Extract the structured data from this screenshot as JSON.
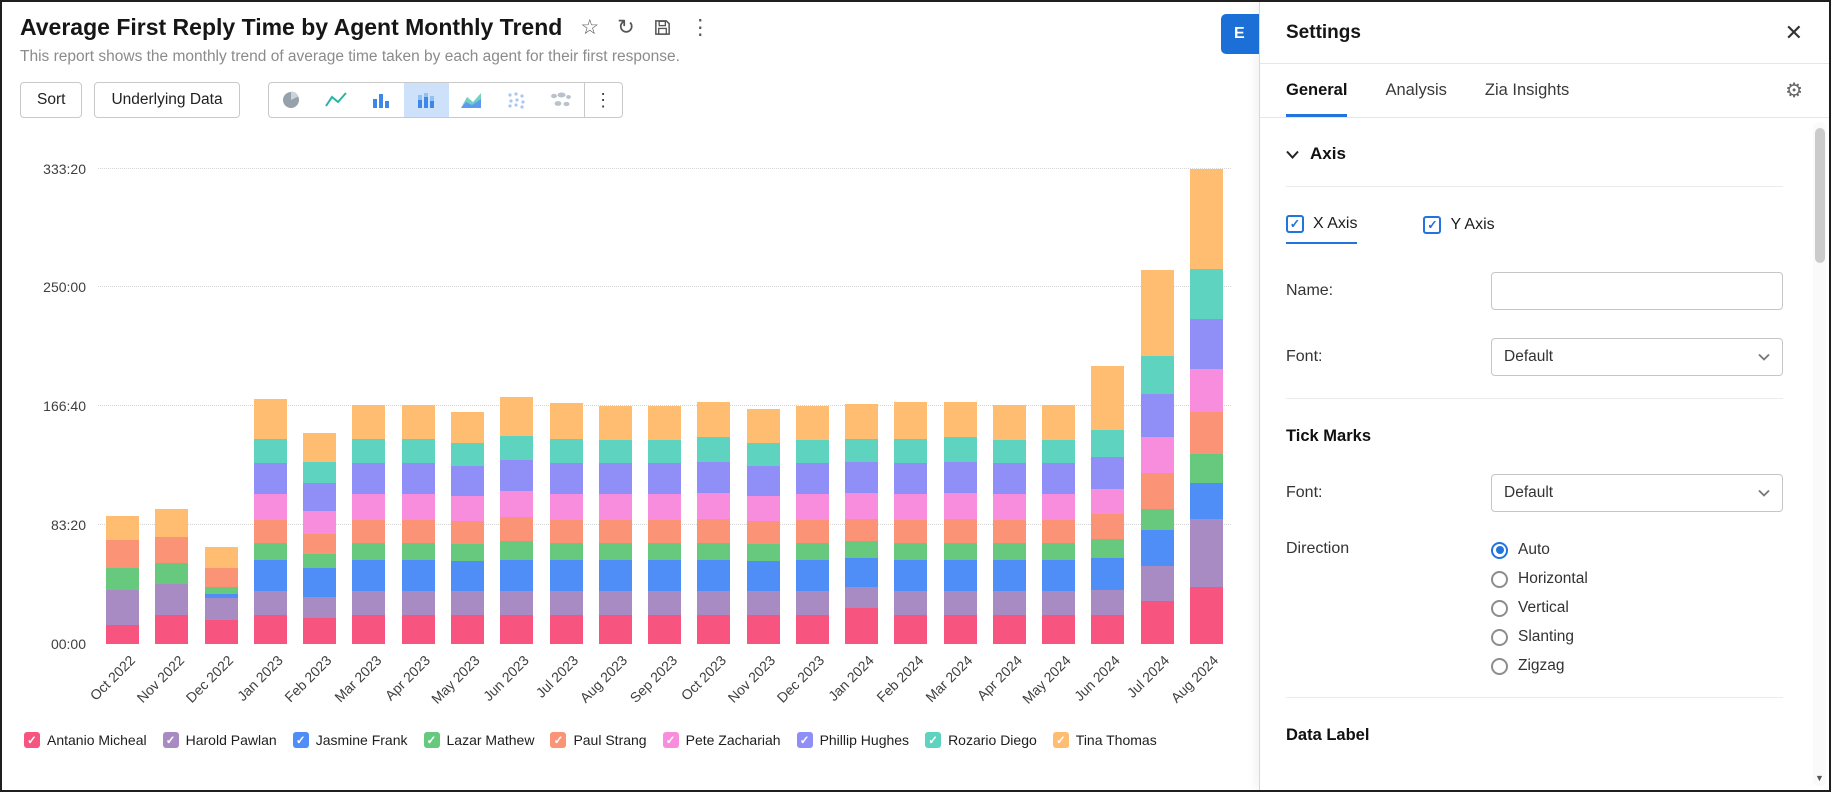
{
  "report": {
    "title": "Average First Reply Time by Agent Monthly Trend",
    "subtitle": "This report shows the monthly trend of average time taken by each agent for their first response.",
    "action_icons": [
      "favorite",
      "refresh",
      "save",
      "more-options"
    ]
  },
  "toolbar": {
    "sort_label": "Sort",
    "underlying_data_label": "Underlying Data",
    "chart_types": [
      "pie-chart",
      "line-chart",
      "bar-chart",
      "stacked-bar-chart",
      "area-chart",
      "scatter-plot",
      "map-chart"
    ],
    "active_chart_type": "stacked-bar-chart"
  },
  "export_button": {
    "visible_label": "E"
  },
  "icons": {
    "favorite": "☆",
    "refresh": "↻",
    "more": "⋮",
    "close": "✕",
    "gear": "⚙",
    "check": "✓",
    "scroll_down": "▼"
  },
  "chart_data": {
    "type": "bar",
    "stacked": true,
    "title": "Average First Reply Time by Agent Monthly Trend",
    "xlabel": "",
    "ylabel": "",
    "grid": "dotted-horizontal",
    "legend_position": "bottom",
    "value_unit": "time (mm:ss axis labels), values in minutes",
    "ylim": [
      0,
      345
    ],
    "yticks": [
      {
        "value": 0,
        "label": "00:00"
      },
      {
        "value": 83.33,
        "label": "83:20"
      },
      {
        "value": 166.67,
        "label": "166:40"
      },
      {
        "value": 250,
        "label": "250:00"
      },
      {
        "value": 333.33,
        "label": "333:20"
      }
    ],
    "categories": [
      "Oct 2022",
      "Nov 2022",
      "Dec 2022",
      "Jan 2023",
      "Feb 2023",
      "Mar 2023",
      "Apr 2023",
      "May 2023",
      "Jun 2023",
      "Jul 2023",
      "Aug 2023",
      "Sep 2023",
      "Oct 2023",
      "Nov 2023",
      "Dec 2023",
      "Jan 2024",
      "Feb 2024",
      "Mar 2024",
      "Apr 2024",
      "May 2024",
      "Jun 2024",
      "Jul 2024",
      "Aug 2024"
    ],
    "series": [
      {
        "name": "Antanio Micheal",
        "color": "#f7557f",
        "values": [
          13,
          20,
          17,
          20,
          18,
          20,
          20,
          20,
          20,
          20,
          20,
          20,
          20,
          20,
          20,
          25,
          20,
          20,
          20,
          20,
          20,
          30,
          40
        ]
      },
      {
        "name": "Harold Pawlan",
        "color": "#a88bc2",
        "values": [
          25,
          22,
          15,
          17,
          15,
          17,
          17,
          17,
          17,
          17,
          17,
          17,
          17,
          17,
          17,
          15,
          17,
          17,
          17,
          17,
          18,
          25,
          48
        ]
      },
      {
        "name": "Jasmine Frank",
        "color": "#4f8df7",
        "values": [
          0,
          0,
          3,
          22,
          20,
          22,
          22,
          21,
          22,
          22,
          22,
          22,
          22,
          21,
          22,
          20,
          22,
          22,
          22,
          22,
          22,
          25,
          25
        ]
      },
      {
        "name": "Lazar Mathew",
        "color": "#66c97e",
        "values": [
          15,
          15,
          5,
          12,
          10,
          12,
          12,
          12,
          13,
          12,
          12,
          12,
          12,
          12,
          12,
          12,
          12,
          12,
          12,
          12,
          14,
          15,
          20
        ]
      },
      {
        "name": "Paul Strang",
        "color": "#fb9376",
        "values": [
          20,
          18,
          13,
          16,
          14,
          16,
          16,
          16,
          17,
          16,
          16,
          16,
          17,
          16,
          16,
          16,
          16,
          17,
          16,
          16,
          17,
          25,
          30
        ]
      },
      {
        "name": "Pete Zachariah",
        "color": "#f98ddd",
        "values": [
          0,
          0,
          0,
          18,
          16,
          18,
          18,
          18,
          18,
          18,
          18,
          18,
          18,
          18,
          18,
          18,
          18,
          18,
          18,
          18,
          18,
          25,
          30
        ]
      },
      {
        "name": "Phillip Hughes",
        "color": "#908ef7",
        "values": [
          0,
          0,
          0,
          22,
          20,
          22,
          22,
          21,
          22,
          22,
          22,
          22,
          22,
          21,
          22,
          22,
          22,
          22,
          22,
          22,
          22,
          30,
          35
        ]
      },
      {
        "name": "Rozario Diego",
        "color": "#5ed3bf",
        "values": [
          0,
          0,
          0,
          17,
          15,
          17,
          17,
          16,
          17,
          17,
          16,
          16,
          17,
          16,
          16,
          16,
          17,
          17,
          16,
          16,
          19,
          27,
          35
        ]
      },
      {
        "name": "Tina Thomas",
        "color": "#ffbd72",
        "values": [
          17,
          20,
          15,
          28,
          20,
          24,
          24,
          22,
          27,
          25,
          24,
          24,
          25,
          24,
          24,
          24,
          26,
          25,
          25,
          25,
          45,
          60,
          70
        ]
      }
    ]
  },
  "settings_panel": {
    "title": "Settings",
    "tabs": [
      {
        "label": "General",
        "active": true
      },
      {
        "label": "Analysis",
        "active": false
      },
      {
        "label": "Zia Insights",
        "active": false
      }
    ],
    "sections": {
      "axis": {
        "title": "Axis",
        "x_axis": {
          "label": "X Axis",
          "checked": true,
          "active": true
        },
        "y_axis": {
          "label": "Y Axis",
          "checked": true,
          "active": false
        },
        "name_label": "Name:",
        "name_value": "",
        "font_label": "Font:",
        "font_value": "Default"
      },
      "tick_marks": {
        "title": "Tick Marks",
        "font_label": "Font:",
        "font_value": "Default",
        "direction_label": "Direction",
        "direction_options": [
          "Auto",
          "Horizontal",
          "Vertical",
          "Slanting",
          "Zigzag"
        ],
        "direction_selected": "Auto"
      },
      "data_label": {
        "title": "Data Label"
      }
    }
  }
}
